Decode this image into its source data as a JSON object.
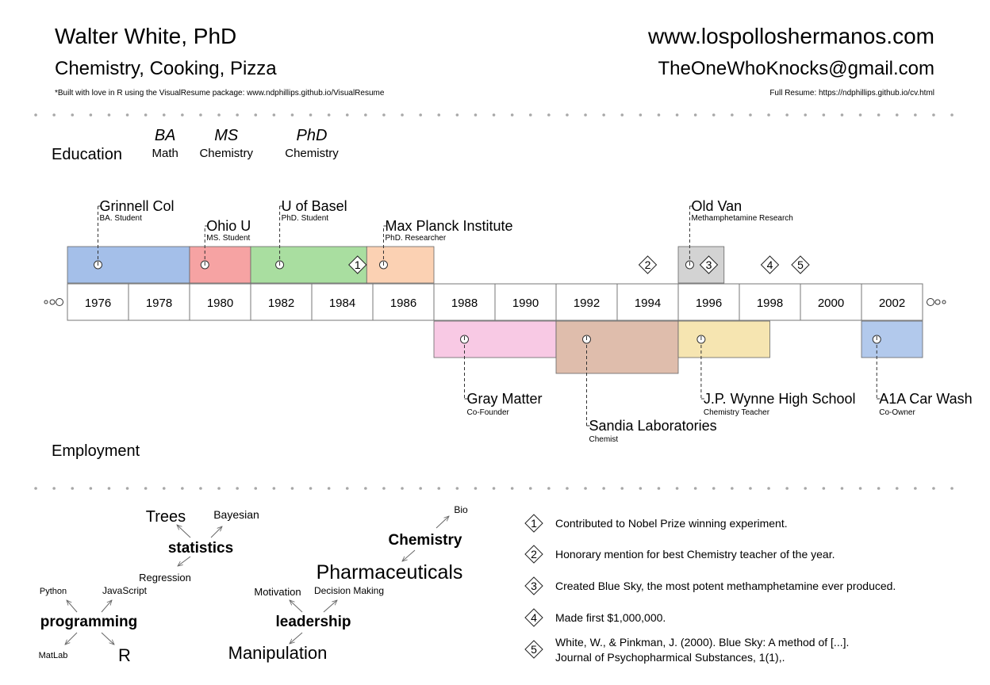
{
  "header": {
    "name": "Walter White, PhD",
    "interests": "Chemistry, Cooking, Pizza",
    "footnote": "*Built with love in R using the VisualResume package: www.ndphillips.github.io/VisualResume",
    "website": "www.lospolloshermanos.com",
    "email": "TheOneWhoKnocks@gmail.com",
    "full_resume": "Full Resume: https://ndphillips.github.io/cv.html"
  },
  "chart_data": {
    "type": "timeline",
    "year_ticks": [
      "1976",
      "1978",
      "1980",
      "1982",
      "1984",
      "1986",
      "1988",
      "1990",
      "1992",
      "1994",
      "1996",
      "1998",
      "2000",
      "2002"
    ],
    "x_range": [
      1975,
      2003
    ],
    "section_labels": {
      "top": "Education",
      "bottom": "Employment"
    },
    "degrees": [
      {
        "degree": "BA",
        "field": "Math",
        "year": 1978.2
      },
      {
        "degree": "MS",
        "field": "Chemistry",
        "year": 1980.2
      },
      {
        "degree": "PhD",
        "field": "Chemistry",
        "year": 1983
      }
    ],
    "education": [
      {
        "title": "Grinnell Col",
        "sub": "BA. Student",
        "start": 1975,
        "end": 1979,
        "color": "#a4bfe9",
        "label_level": 1
      },
      {
        "title": "Ohio U",
        "sub": "MS. Student",
        "start": 1979,
        "end": 1981,
        "color": "#f6a3a3",
        "label_level": 2
      },
      {
        "title": "U of Basel",
        "sub": "PhD. Student",
        "start": 1981,
        "end": 1984.8,
        "color": "#a9dea0",
        "label_level": 1
      },
      {
        "title": "Max Planck Institute",
        "sub": "PhD. Researcher",
        "start": 1984.8,
        "end": 1987,
        "color": "#fbd1b3",
        "label_level": 2
      },
      {
        "title": "Old Van",
        "sub": "Methamphetamine Research",
        "start": 1995,
        "end": 1996.5,
        "color": "#d3d3d3",
        "label_level": 1
      }
    ],
    "employment": [
      {
        "title": "Gray Matter",
        "sub": "Co-Founder",
        "start": 1987,
        "end": 1991,
        "color": "#f7c0df",
        "row": 1,
        "label_level": 1
      },
      {
        "title": "Sandia Laboratories",
        "sub": "Chemist",
        "start": 1991,
        "end": 1995,
        "color": "#d9b29d",
        "row": 2,
        "label_level": 2
      },
      {
        "title": "J.P. Wynne High School",
        "sub": "Chemistry Teacher",
        "start": 1995,
        "end": 1998,
        "color": "#f5e1a3",
        "row": 1,
        "label_level": 1
      },
      {
        "title": "A1A Car Wash",
        "sub": "Co-Owner",
        "start": 2001,
        "end": 2003,
        "color": "#a4bfe9",
        "row": 1,
        "label_level": 1
      }
    ],
    "milestones": [
      {
        "num": "1",
        "year": 1984.5,
        "text": "Contributed to Nobel Prize winning experiment."
      },
      {
        "num": "2",
        "year": 1994,
        "text": "Honorary mention for best Chemistry teacher of the year."
      },
      {
        "num": "3",
        "year": 1996,
        "text": "Created Blue Sky, the most potent methamphetamine ever produced."
      },
      {
        "num": "4",
        "year": 1998,
        "text": "Made first $1,000,000."
      },
      {
        "num": "5",
        "year": 1999,
        "text": "White, W., & Pinkman, J. (2000). Blue Sky: A method of [...].",
        "text2": "Journal of Psychopharmical Substances, 1(1),."
      }
    ],
    "skill_trees": [
      {
        "main": "statistics",
        "children": [
          "Trees",
          "Bayesian",
          "Regression"
        ]
      },
      {
        "main": "programming",
        "children": [
          "Python",
          "JavaScript",
          "MatLab",
          "R"
        ]
      },
      {
        "main": "leadership",
        "children": [
          "Motivation",
          "Decision Making",
          "Manipulation"
        ]
      },
      {
        "main": "Chemistry",
        "children": [
          "Bio",
          "Pharmaceuticals"
        ]
      }
    ]
  }
}
